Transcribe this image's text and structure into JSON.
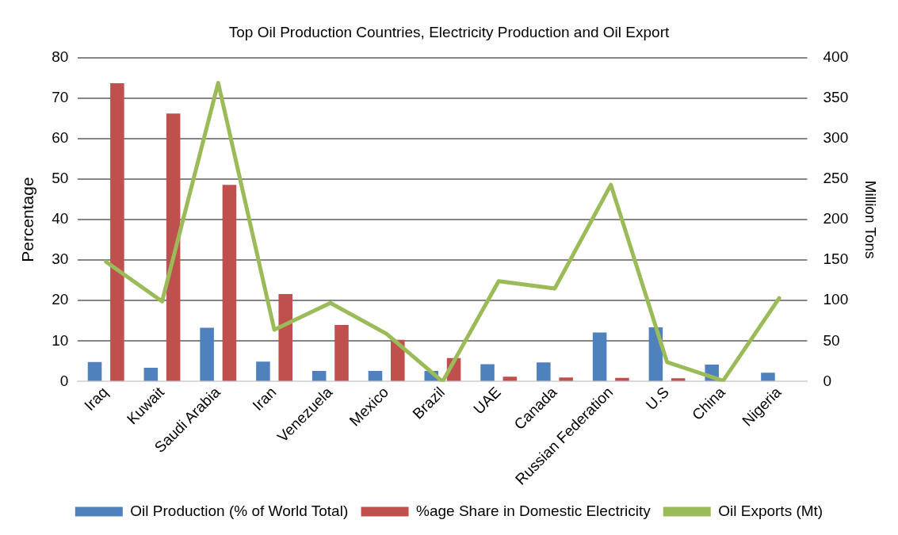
{
  "chart_data": {
    "type": "bar",
    "title": "Top Oil Production Countries, Electricity Production and Oil Export",
    "ylabel": "Percentage",
    "y2label": "Million Tons",
    "categories": [
      "Iraq",
      "Kuwait",
      "Saudi Arabia",
      "Iran",
      "Venezuela",
      "Mexico",
      "Brazil",
      "UAE",
      "Canada",
      "Russian Federation",
      "U.S",
      "China",
      "Nigeria"
    ],
    "series": [
      {
        "name": "Oil Production (% of World Total)",
        "color": "#4f81bd",
        "values": [
          4.8,
          3.4,
          13.3,
          4.9,
          2.6,
          2.6,
          2.6,
          4.3,
          4.7,
          12.1,
          13.4,
          4.2,
          2.2
        ]
      },
      {
        "name": "%age Share in Domestic Electricity",
        "color": "#c0504d",
        "values": [
          73.7,
          66.2,
          48.6,
          21.6,
          14,
          10.3,
          5.8,
          1.2,
          1,
          0.9,
          0.8,
          null,
          null
        ]
      },
      {
        "name": "Oil Exports (Mt)",
        "color": "#9bbb59",
        "type": "line",
        "axis": "y2",
        "values": [
          148,
          99,
          369,
          64,
          97,
          59,
          0,
          124,
          115,
          243,
          24,
          1,
          103
        ]
      }
    ],
    "ylim": [
      0,
      80
    ],
    "yticks": [
      0,
      10,
      20,
      30,
      40,
      50,
      60,
      70,
      80
    ],
    "y2lim": [
      0,
      400
    ],
    "y2ticks": [
      0,
      50,
      100,
      150,
      200,
      250,
      300,
      350,
      400
    ],
    "grid": "y",
    "legend": "bottom",
    "marker": "none"
  }
}
